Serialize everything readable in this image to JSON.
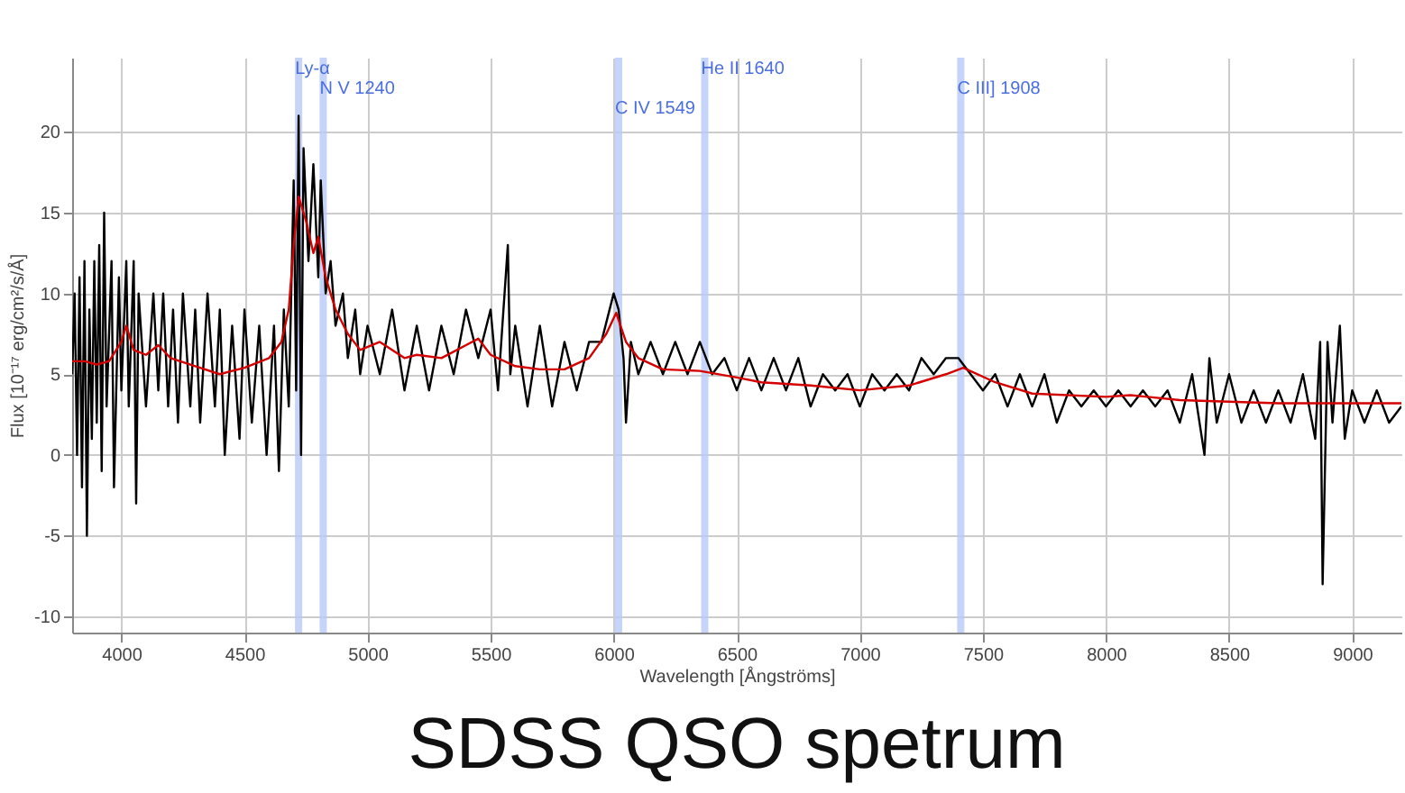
{
  "chart_data": {
    "type": "line",
    "title": "SDSS QSO spetrum",
    "xlabel": "Wavelength [Ångströms]",
    "ylabel": "Flux [10⁻¹⁷ erg/cm²/s/Å]",
    "xlim": [
      3800,
      9200
    ],
    "ylim": [
      -11,
      24.6
    ],
    "xticks": [
      4000,
      4500,
      5000,
      5500,
      6000,
      6500,
      7000,
      7500,
      8000,
      8500,
      9000
    ],
    "yticks": [
      -10,
      -5,
      0,
      5,
      10,
      15,
      20
    ],
    "grid": true,
    "marker": "none",
    "line_style": "solid",
    "series": [
      {
        "color": "#000000",
        "x": [
          3800,
          3810,
          3820,
          3830,
          3840,
          3850,
          3860,
          3870,
          3880,
          3890,
          3900,
          3910,
          3920,
          3930,
          3940,
          3960,
          3970,
          3990,
          4000,
          4020,
          4030,
          4050,
          4060,
          4070,
          4100,
          4130,
          4150,
          4170,
          4190,
          4210,
          4230,
          4250,
          4280,
          4300,
          4320,
          4350,
          4380,
          4400,
          4420,
          4450,
          4480,
          4500,
          4530,
          4560,
          4590,
          4620,
          4640,
          4660,
          4680,
          4700,
          4710,
          4720,
          4730,
          4740,
          4760,
          4780,
          4800,
          4810,
          4830,
          4850,
          4870,
          4900,
          4920,
          4950,
          4970,
          5000,
          5050,
          5100,
          5150,
          5200,
          5250,
          5300,
          5350,
          5400,
          5450,
          5500,
          5530,
          5570,
          5580,
          5600,
          5650,
          5700,
          5750,
          5800,
          5850,
          5900,
          5950,
          6000,
          6020,
          6040,
          6050,
          6070,
          6100,
          6150,
          6200,
          6250,
          6300,
          6350,
          6400,
          6450,
          6500,
          6550,
          6600,
          6650,
          6700,
          6750,
          6800,
          6850,
          6900,
          6950,
          7000,
          7050,
          7100,
          7150,
          7200,
          7250,
          7300,
          7350,
          7400,
          7450,
          7500,
          7550,
          7600,
          7650,
          7700,
          7750,
          7800,
          7850,
          7900,
          7950,
          8000,
          8050,
          8100,
          8150,
          8200,
          8250,
          8300,
          8350,
          8400,
          8420,
          8450,
          8500,
          8550,
          8600,
          8650,
          8700,
          8750,
          8800,
          8850,
          8870,
          8880,
          8900,
          8920,
          8950,
          8970,
          9000,
          9050,
          9100,
          9150,
          9200
        ],
        "values": [
          5,
          10,
          0,
          11,
          -2,
          12,
          -5,
          9,
          1,
          12,
          2,
          13,
          -1,
          15,
          3,
          12,
          -2,
          11,
          4,
          12,
          3,
          12,
          -3,
          10,
          3,
          10,
          4,
          10,
          3,
          9,
          2,
          10,
          3,
          9,
          2,
          10,
          3,
          9,
          0,
          8,
          1,
          9,
          2,
          8,
          0,
          8,
          -1,
          9,
          3,
          17,
          4,
          21,
          0,
          19,
          12,
          18,
          11,
          17,
          10,
          12,
          8,
          10,
          6,
          9,
          5,
          8,
          5,
          9,
          4,
          8,
          4,
          8,
          5,
          9,
          6,
          9,
          4,
          13,
          5,
          8,
          3,
          8,
          3,
          7,
          4,
          7,
          7,
          10,
          9,
          6,
          2,
          7,
          5,
          7,
          5,
          7,
          5,
          7,
          5,
          6,
          4,
          6,
          4,
          6,
          4,
          6,
          3,
          5,
          4,
          5,
          3,
          5,
          4,
          5,
          4,
          6,
          5,
          6,
          6,
          5,
          4,
          5,
          3,
          5,
          3,
          5,
          2,
          4,
          3,
          4,
          3,
          4,
          3,
          4,
          3,
          4,
          2,
          5,
          0,
          6,
          2,
          5,
          2,
          4,
          2,
          4,
          2,
          5,
          1,
          7,
          -8,
          7,
          2,
          8,
          1,
          4,
          2,
          4,
          2,
          3
        ]
      },
      {
        "color": "#d40000",
        "x": [
          3800,
          3850,
          3900,
          3950,
          4000,
          4020,
          4050,
          4100,
          4150,
          4200,
          4300,
          4400,
          4500,
          4600,
          4650,
          4680,
          4700,
          4720,
          4750,
          4780,
          4800,
          4830,
          4870,
          4920,
          4970,
          5050,
          5150,
          5200,
          5300,
          5400,
          5450,
          5500,
          5600,
          5700,
          5800,
          5900,
          5970,
          6010,
          6050,
          6100,
          6200,
          6350,
          6500,
          6600,
          6800,
          7000,
          7200,
          7350,
          7420,
          7550,
          7700,
          8000,
          8100,
          8300,
          8500,
          8700,
          8900,
          9200
        ],
        "values": [
          5.8,
          5.8,
          5.6,
          5.8,
          7,
          8,
          6.5,
          6.2,
          6.8,
          6,
          5.5,
          5,
          5.4,
          6,
          7,
          9,
          13,
          16,
          14.5,
          12.5,
          13.5,
          11,
          9,
          7.5,
          6.5,
          7,
          6,
          6.2,
          6,
          6.8,
          7.2,
          6.2,
          5.5,
          5.3,
          5.3,
          6,
          7.5,
          8.8,
          7,
          6,
          5.3,
          5.2,
          4.8,
          4.5,
          4.3,
          4,
          4.3,
          5,
          5.4,
          4.5,
          3.8,
          3.6,
          3.7,
          3.4,
          3.3,
          3.2,
          3.2,
          3.2
        ]
      }
    ],
    "ref_lines": [
      {
        "axis": "x",
        "value": 4720,
        "label": "Ly-α",
        "color": "#b8c9f7"
      },
      {
        "axis": "x",
        "value": 4820,
        "label": "N V 1240",
        "color": "#b8c9f7"
      },
      {
        "axis": "x",
        "value": 6020,
        "label": "C IV 1549",
        "color": "#b8c9f7"
      },
      {
        "axis": "x",
        "value": 6370,
        "label": "He II 1640",
        "color": "#b8c9f7"
      },
      {
        "axis": "x",
        "value": 7410,
        "label": "C III] 1908",
        "color": "#b8c9f7"
      }
    ]
  }
}
